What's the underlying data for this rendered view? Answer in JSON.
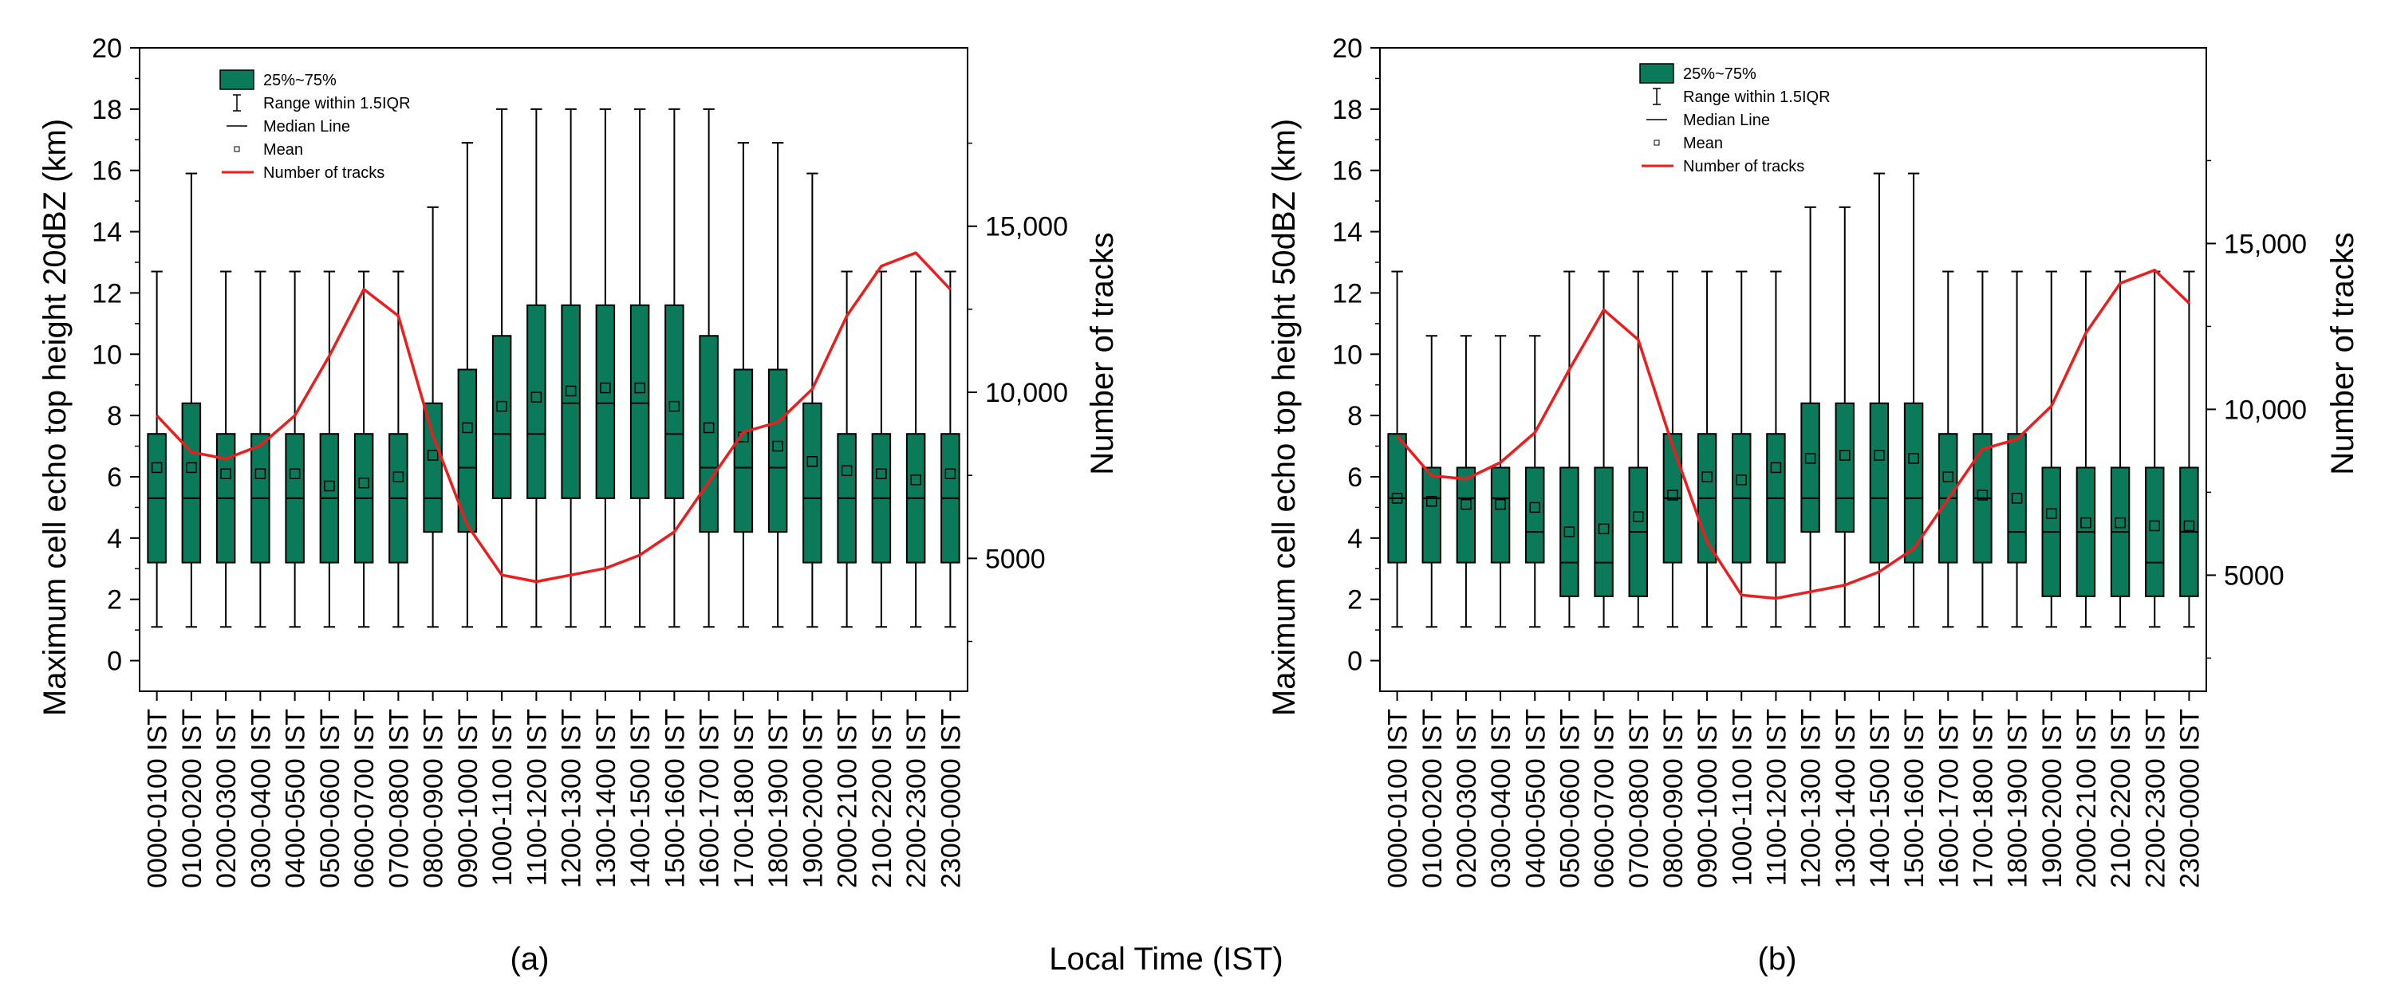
{
  "figure": {
    "xlabel": "Local Time (IST)",
    "legend": {
      "box": "25%~75%",
      "range": "Range within 1.5IQR",
      "median": "Median Line",
      "mean": "Mean",
      "line": "Number of tracks"
    },
    "colors": {
      "box": "#0b7a5a",
      "line": "#ee1c1c",
      "axis": "#000000"
    }
  },
  "chart_data": [
    {
      "type": "box",
      "panel": "(a)",
      "ylabel": "Maximum cell echo top height 20dBZ (km)",
      "y2label": "Number of tracks",
      "ylim": [
        -1,
        20
      ],
      "yticks": [
        0,
        2,
        4,
        6,
        8,
        10,
        12,
        14,
        16,
        18,
        20
      ],
      "y2ticks": [
        5000,
        10000,
        15000
      ],
      "y2ticklabels": [
        "5000",
        "10,000",
        "15,000"
      ],
      "y2lim": [
        1000,
        20370
      ],
      "categories": [
        "0000-0100 IST",
        "0100-0200 IST",
        "0200-0300 IST",
        "0300-0400 IST",
        "0400-0500 IST",
        "0500-0600 IST",
        "0600-0700 IST",
        "0700-0800 IST",
        "0800-0900 IST",
        "0900-1000 IST",
        "1000-1100 IST",
        "1100-1200 IST",
        "1200-1300 IST",
        "1300-1400 IST",
        "1400-1500 IST",
        "1500-1600 IST",
        "1600-1700 IST",
        "1700-1800 IST",
        "1800-1900 IST",
        "1900-2000 IST",
        "2000-2100 IST",
        "2100-2200 IST",
        "2200-2300 IST",
        "2300-0000 IST"
      ],
      "whisker_low": [
        1.1,
        1.1,
        1.1,
        1.1,
        1.1,
        1.1,
        1.1,
        1.1,
        1.1,
        1.1,
        1.1,
        1.1,
        1.1,
        1.1,
        1.1,
        1.1,
        1.1,
        1.1,
        1.1,
        1.1,
        1.1,
        1.1,
        1.1,
        1.1
      ],
      "q1": [
        3.2,
        3.2,
        3.2,
        3.2,
        3.2,
        3.2,
        3.2,
        3.2,
        4.2,
        4.2,
        5.3,
        5.3,
        5.3,
        5.3,
        5.3,
        5.3,
        4.2,
        4.2,
        4.2,
        3.2,
        3.2,
        3.2,
        3.2,
        3.2
      ],
      "median": [
        5.3,
        5.3,
        5.3,
        5.3,
        5.3,
        5.3,
        5.3,
        5.3,
        5.3,
        6.3,
        7.4,
        7.4,
        8.4,
        8.4,
        8.4,
        7.4,
        6.3,
        6.3,
        6.3,
        5.3,
        5.3,
        5.3,
        5.3,
        5.3
      ],
      "q3": [
        7.4,
        8.4,
        7.4,
        7.4,
        7.4,
        7.4,
        7.4,
        7.4,
        8.4,
        9.5,
        10.6,
        11.6,
        11.6,
        11.6,
        11.6,
        11.6,
        10.6,
        9.5,
        9.5,
        8.4,
        7.4,
        7.4,
        7.4,
        7.4
      ],
      "whisker_high": [
        12.7,
        15.9,
        12.7,
        12.7,
        12.7,
        12.7,
        12.7,
        12.7,
        14.8,
        16.9,
        18.0,
        18.0,
        18.0,
        18.0,
        18.0,
        18.0,
        18.0,
        16.9,
        16.9,
        15.9,
        12.7,
        12.7,
        12.7,
        12.7
      ],
      "mean": [
        6.3,
        6.3,
        6.1,
        6.1,
        6.1,
        5.7,
        5.8,
        6.0,
        6.7,
        7.6,
        8.3,
        8.6,
        8.8,
        8.9,
        8.9,
        8.3,
        7.6,
        7.3,
        7.0,
        6.5,
        6.2,
        6.1,
        5.9,
        6.1
      ],
      "tracks": [
        9300,
        8200,
        8000,
        8400,
        9300,
        11100,
        13100,
        12300,
        8700,
        6000,
        4500,
        4300,
        4500,
        4700,
        5100,
        5800,
        7300,
        8800,
        9100,
        10100,
        12300,
        13800,
        14200,
        13100
      ]
    },
    {
      "type": "box",
      "panel": "(b)",
      "ylabel": "Maximum cell echo top height 50dBZ (km)",
      "y2label": "Number of tracks",
      "ylim": [
        -1,
        20
      ],
      "yticks": [
        0,
        2,
        4,
        6,
        8,
        10,
        12,
        14,
        16,
        18,
        20
      ],
      "y2ticks": [
        5000,
        10000,
        15000
      ],
      "y2ticklabels": [
        "5000",
        "10,000",
        "15,000"
      ],
      "y2lim": [
        1500,
        20900
      ],
      "categories": [
        "0000-0100 IST",
        "0100-0200 IST",
        "0200-0300 IST",
        "0300-0400 IST",
        "0400-0500 IST",
        "0500-0600 IST",
        "0600-0700 IST",
        "0700-0800 IST",
        "0800-0900 IST",
        "0900-1000 IST",
        "1000-1100 IST",
        "1100-1200 IST",
        "1200-1300 IST",
        "1300-1400 IST",
        "1400-1500 IST",
        "1500-1600 IST",
        "1600-1700 IST",
        "1700-1800 IST",
        "1800-1900 IST",
        "1900-2000 IST",
        "2000-2100 IST",
        "2100-2200 IST",
        "2200-2300 IST",
        "2300-0000 IST"
      ],
      "whisker_low": [
        1.1,
        1.1,
        1.1,
        1.1,
        1.1,
        1.1,
        1.1,
        1.1,
        1.1,
        1.1,
        1.1,
        1.1,
        1.1,
        1.1,
        1.1,
        1.1,
        1.1,
        1.1,
        1.1,
        1.1,
        1.1,
        1.1,
        1.1,
        1.1
      ],
      "q1": [
        3.2,
        3.2,
        3.2,
        3.2,
        3.2,
        2.1,
        2.1,
        2.1,
        3.2,
        3.2,
        3.2,
        3.2,
        4.2,
        4.2,
        3.2,
        3.2,
        3.2,
        3.2,
        3.2,
        2.1,
        2.1,
        2.1,
        2.1,
        2.1
      ],
      "median": [
        5.3,
        5.3,
        5.3,
        5.3,
        4.2,
        3.2,
        3.2,
        4.2,
        5.3,
        5.3,
        5.3,
        5.3,
        5.3,
        5.3,
        5.3,
        5.3,
        5.3,
        5.3,
        4.2,
        4.2,
        4.2,
        4.2,
        3.2,
        4.2
      ],
      "q3": [
        7.4,
        6.3,
        6.3,
        6.3,
        6.3,
        6.3,
        6.3,
        6.3,
        7.4,
        7.4,
        7.4,
        7.4,
        8.4,
        8.4,
        8.4,
        8.4,
        7.4,
        7.4,
        7.4,
        6.3,
        6.3,
        6.3,
        6.3,
        6.3
      ],
      "whisker_high": [
        12.7,
        10.6,
        10.6,
        10.6,
        10.6,
        12.7,
        12.7,
        12.7,
        12.7,
        12.7,
        12.7,
        12.7,
        14.8,
        14.8,
        15.9,
        15.9,
        12.7,
        12.7,
        12.7,
        12.7,
        12.7,
        12.7,
        12.7,
        12.7
      ],
      "mean": [
        5.3,
        5.2,
        5.1,
        5.1,
        5.0,
        4.2,
        4.3,
        4.7,
        5.4,
        6.0,
        5.9,
        6.3,
        6.6,
        6.7,
        6.7,
        6.6,
        6.0,
        5.4,
        5.3,
        4.8,
        4.5,
        4.5,
        4.4,
        4.4
      ],
      "tracks": [
        9200,
        8000,
        7900,
        8400,
        9300,
        11200,
        13000,
        12100,
        8900,
        6000,
        4400,
        4300,
        4500,
        4700,
        5100,
        5800,
        7300,
        8800,
        9100,
        10100,
        12300,
        13800,
        14200,
        13200
      ]
    }
  ]
}
